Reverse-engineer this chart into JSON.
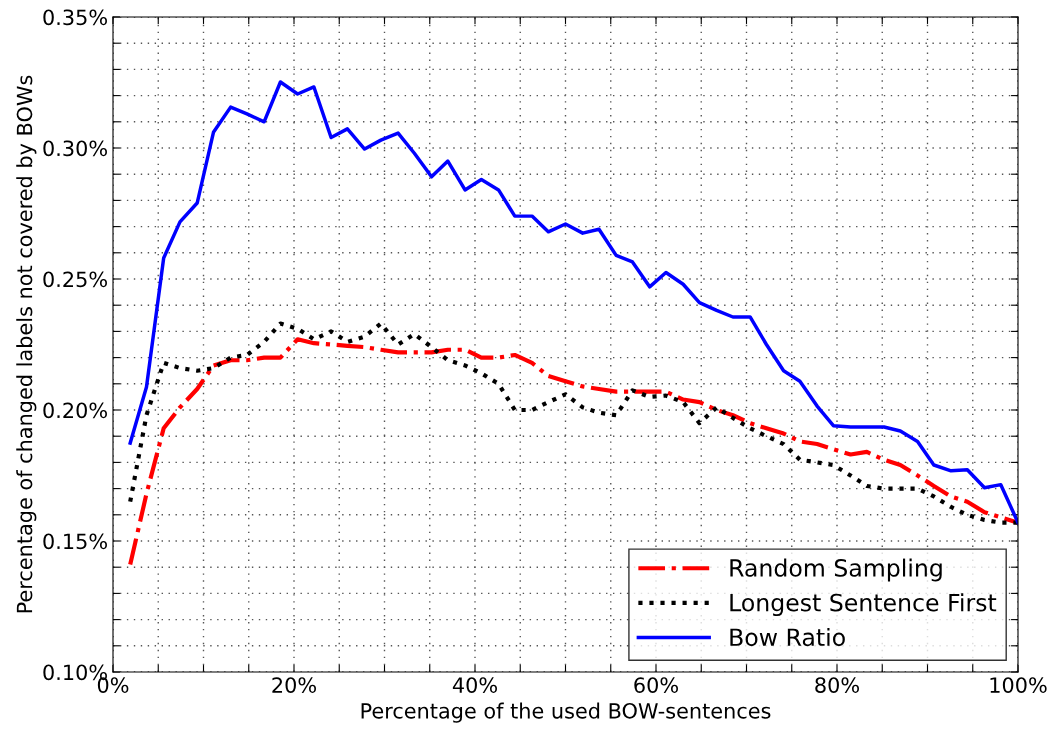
{
  "chart_data": {
    "type": "line",
    "xlabel": "Percentage of the used BOW-sentences",
    "ylabel": "Percentage of changed labels not covered by BOWs",
    "x": [
      1.9,
      3.7,
      5.6,
      7.4,
      9.3,
      11.1,
      13.0,
      14.8,
      16.7,
      18.5,
      20.4,
      22.2,
      24.1,
      25.9,
      27.8,
      29.6,
      31.5,
      33.3,
      35.2,
      37.0,
      38.9,
      40.7,
      42.6,
      44.4,
      46.3,
      48.1,
      50.0,
      51.9,
      53.7,
      55.6,
      57.4,
      59.3,
      61.1,
      63.0,
      64.8,
      66.7,
      68.5,
      70.4,
      72.2,
      74.1,
      75.9,
      77.8,
      79.6,
      81.5,
      83.3,
      85.2,
      87.0,
      88.9,
      90.7,
      92.6,
      94.4,
      96.3,
      98.1,
      100.0
    ],
    "series": [
      {
        "name": "Random Sampling",
        "color": "#ff0000",
        "line_style": "dashdot",
        "values": [
          0.141,
          0.168,
          0.193,
          0.201,
          0.208,
          0.217,
          0.219,
          0.219,
          0.22,
          0.22,
          0.227,
          0.2255,
          0.225,
          0.2245,
          0.224,
          0.223,
          0.222,
          0.222,
          0.222,
          0.223,
          0.223,
          0.22,
          0.22,
          0.221,
          0.218,
          0.213,
          0.211,
          0.209,
          0.208,
          0.207,
          0.207,
          0.207,
          0.207,
          0.204,
          0.203,
          0.2,
          0.198,
          0.195,
          0.193,
          0.191,
          0.188,
          0.187,
          0.185,
          0.183,
          0.184,
          0.181,
          0.179,
          0.175,
          0.171,
          0.167,
          0.165,
          0.161,
          0.159,
          0.157
        ]
      },
      {
        "name": "Longest Sentence First",
        "color": "#000000",
        "line_style": "dotted",
        "values": [
          0.165,
          0.198,
          0.218,
          0.216,
          0.215,
          0.216,
          0.22,
          0.221,
          0.226,
          0.233,
          0.231,
          0.227,
          0.23,
          0.226,
          0.228,
          0.233,
          0.225,
          0.229,
          0.224,
          0.219,
          0.217,
          0.214,
          0.21,
          0.2,
          0.2,
          0.203,
          0.206,
          0.201,
          0.199,
          0.198,
          0.2075,
          0.205,
          0.2055,
          0.203,
          0.195,
          0.201,
          0.197,
          0.193,
          0.19,
          0.187,
          0.181,
          0.18,
          0.179,
          0.175,
          0.171,
          0.17,
          0.17,
          0.17,
          0.167,
          0.163,
          0.16,
          0.158,
          0.157,
          0.157
        ]
      },
      {
        "name": "Bow Ratio",
        "color": "#0000ff",
        "line_style": "solid",
        "values": [
          0.1874,
          0.2088,
          0.258,
          0.2718,
          0.279,
          0.306,
          0.3156,
          0.313,
          0.31,
          0.3252,
          0.3206,
          0.3233,
          0.304,
          0.3073,
          0.2996,
          0.303,
          0.3057,
          0.298,
          0.289,
          0.295,
          0.284,
          0.288,
          0.284,
          0.274,
          0.274,
          0.268,
          0.271,
          0.2675,
          0.269,
          0.259,
          0.2565,
          0.247,
          0.2525,
          0.248,
          0.241,
          0.238,
          0.2355,
          0.2355,
          0.225,
          0.215,
          0.211,
          0.2015,
          0.194,
          0.1935,
          0.1935,
          0.1935,
          0.192,
          0.188,
          0.179,
          0.1768,
          0.1772,
          0.1703,
          0.1715,
          0.157
        ]
      }
    ],
    "xlim": [
      0,
      100
    ],
    "ylim": [
      0.1,
      0.35
    ],
    "xticks": [
      {
        "value": 0,
        "label": "0%"
      },
      {
        "value": 5,
        "label": null
      },
      {
        "value": 10,
        "label": null
      },
      {
        "value": 15,
        "label": null
      },
      {
        "value": 20,
        "label": "20%"
      },
      {
        "value": 25,
        "label": null
      },
      {
        "value": 30,
        "label": null
      },
      {
        "value": 35,
        "label": null
      },
      {
        "value": 40,
        "label": "40%"
      },
      {
        "value": 45,
        "label": null
      },
      {
        "value": 50,
        "label": null
      },
      {
        "value": 55,
        "label": null
      },
      {
        "value": 60,
        "label": "60%"
      },
      {
        "value": 65,
        "label": null
      },
      {
        "value": 70,
        "label": null
      },
      {
        "value": 75,
        "label": null
      },
      {
        "value": 80,
        "label": "80%"
      },
      {
        "value": 85,
        "label": null
      },
      {
        "value": 90,
        "label": null
      },
      {
        "value": 95,
        "label": null
      },
      {
        "value": 100,
        "label": "100%"
      }
    ],
    "yticks": [
      {
        "value": 0.1,
        "label": "0.10%"
      },
      {
        "value": 0.11,
        "label": null
      },
      {
        "value": 0.12,
        "label": null
      },
      {
        "value": 0.13,
        "label": null
      },
      {
        "value": 0.14,
        "label": null
      },
      {
        "value": 0.15,
        "label": "0.15%"
      },
      {
        "value": 0.16,
        "label": null
      },
      {
        "value": 0.17,
        "label": null
      },
      {
        "value": 0.18,
        "label": null
      },
      {
        "value": 0.19,
        "label": null
      },
      {
        "value": 0.2,
        "label": "0.20%"
      },
      {
        "value": 0.21,
        "label": null
      },
      {
        "value": 0.22,
        "label": null
      },
      {
        "value": 0.23,
        "label": null
      },
      {
        "value": 0.24,
        "label": null
      },
      {
        "value": 0.25,
        "label": "0.25%"
      },
      {
        "value": 0.26,
        "label": null
      },
      {
        "value": 0.27,
        "label": null
      },
      {
        "value": 0.28,
        "label": null
      },
      {
        "value": 0.29,
        "label": null
      },
      {
        "value": 0.3,
        "label": "0.30%"
      },
      {
        "value": 0.31,
        "label": null
      },
      {
        "value": 0.32,
        "label": null
      },
      {
        "value": 0.33,
        "label": null
      },
      {
        "value": 0.34,
        "label": null
      },
      {
        "value": 0.35,
        "label": "0.35%"
      }
    ],
    "grid": true,
    "legend": "lower right"
  }
}
